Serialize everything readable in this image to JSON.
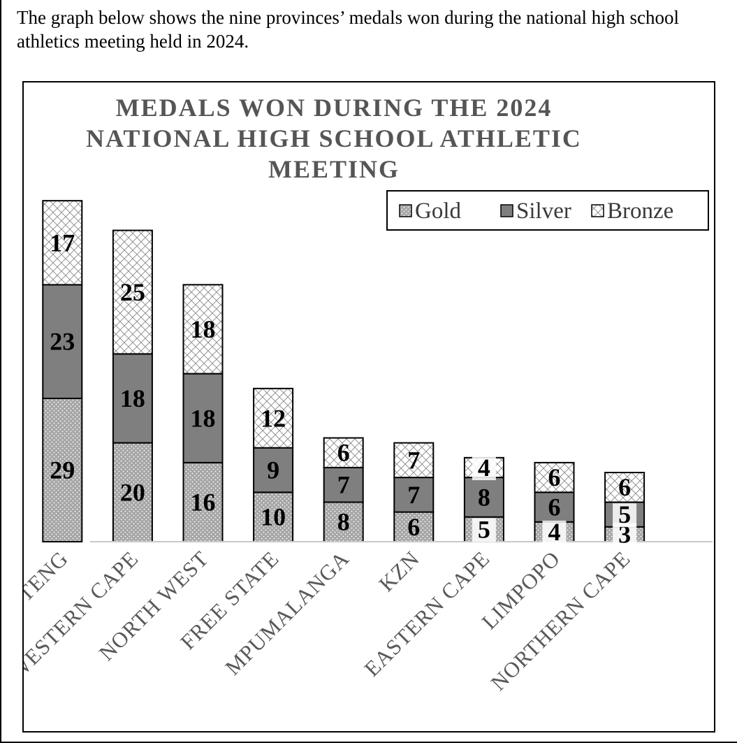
{
  "intro_text": "The graph below shows the nine provinces’ medals won during the national high school athletics meeting held in 2024.",
  "chart_data": {
    "type": "bar",
    "stacked": true,
    "title": "MEDALS WON DURING THE 2024 NATIONAL HIGH SCHOOL ATHLETIC MEETING",
    "title_lines": [
      "MEDALS WON DURING THE 2024",
      "NATIONAL HIGH SCHOOL ATHLETIC",
      "MEETING"
    ],
    "xlabel": "",
    "ylabel": "",
    "categories": [
      "GAUTENG",
      "WESTERN CAPE",
      "NORTH WEST",
      "FREE STATE",
      "MPUMALANGA",
      "KZN",
      "EASTERN CAPE",
      "LIMPOPO",
      "NORTHERN CAPE"
    ],
    "series": [
      {
        "name": "Gold",
        "values": [
          29,
          20,
          16,
          10,
          8,
          6,
          5,
          4,
          3
        ],
        "color": "#a6a6a6",
        "pattern": "dots"
      },
      {
        "name": "Silver",
        "values": [
          23,
          18,
          18,
          9,
          7,
          7,
          8,
          6,
          5
        ],
        "color": "#7f7f7f",
        "pattern": "solid"
      },
      {
        "name": "Bronze",
        "values": [
          17,
          25,
          18,
          12,
          6,
          7,
          4,
          6,
          6
        ],
        "color": "#ffffff",
        "pattern": "crosshatch"
      }
    ],
    "ylim": [
      0,
      70
    ],
    "grid": false,
    "legend_position": "top-right",
    "data_labels": true
  }
}
